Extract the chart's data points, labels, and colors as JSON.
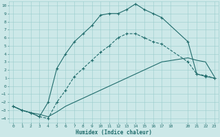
{
  "xlabel": "Humidex (Indice chaleur)",
  "background_color": "#cce8e8",
  "grid_color": "#99cccc",
  "line_color": "#1f6b6b",
  "xlim": [
    -0.5,
    23.5
  ],
  "ylim": [
    -4.5,
    10.5
  ],
  "xticks": [
    0,
    1,
    2,
    3,
    4,
    5,
    6,
    7,
    8,
    9,
    10,
    11,
    12,
    13,
    14,
    15,
    16,
    17,
    18,
    20,
    21,
    22,
    23
  ],
  "yticks": [
    -4,
    -3,
    -2,
    -1,
    0,
    1,
    2,
    3,
    4,
    5,
    6,
    7,
    8,
    9,
    10
  ],
  "line_upper_x": [
    0,
    1,
    2,
    3,
    4,
    5,
    6,
    7,
    8,
    9,
    10,
    11,
    12,
    13,
    14,
    15,
    16,
    17,
    20,
    21,
    22,
    23
  ],
  "line_upper_y": [
    -2.5,
    -3.0,
    -3.3,
    -3.8,
    -2.0,
    2.2,
    4.0,
    5.5,
    6.5,
    7.5,
    8.8,
    9.0,
    9.0,
    9.5,
    10.2,
    9.5,
    9.0,
    8.5,
    5.5,
    1.5,
    1.2,
    1.0
  ],
  "line_middle_x": [
    0,
    1,
    2,
    3,
    4,
    5,
    6,
    7,
    8,
    9,
    10,
    11,
    12,
    13,
    14,
    15,
    16,
    17,
    20,
    21,
    22,
    23
  ],
  "line_middle_y": [
    -2.5,
    -3.0,
    -3.3,
    -3.8,
    -4.0,
    -2.0,
    -0.5,
    1.2,
    2.2,
    3.2,
    4.2,
    5.0,
    6.0,
    6.5,
    6.5,
    6.0,
    5.5,
    5.2,
    3.0,
    1.5,
    1.3,
    1.0
  ],
  "line_lower_x": [
    0,
    1,
    2,
    3,
    4,
    5,
    6,
    7,
    8,
    9,
    10,
    11,
    12,
    13,
    14,
    15,
    16,
    17,
    20,
    21,
    22,
    23
  ],
  "line_lower_y": [
    -2.5,
    -3.0,
    -3.3,
    -3.5,
    -3.8,
    -3.2,
    -2.5,
    -2.0,
    -1.5,
    -1.0,
    -0.5,
    0.0,
    0.5,
    1.0,
    1.5,
    2.0,
    2.5,
    3.0,
    3.5,
    3.2,
    3.0,
    1.2
  ]
}
